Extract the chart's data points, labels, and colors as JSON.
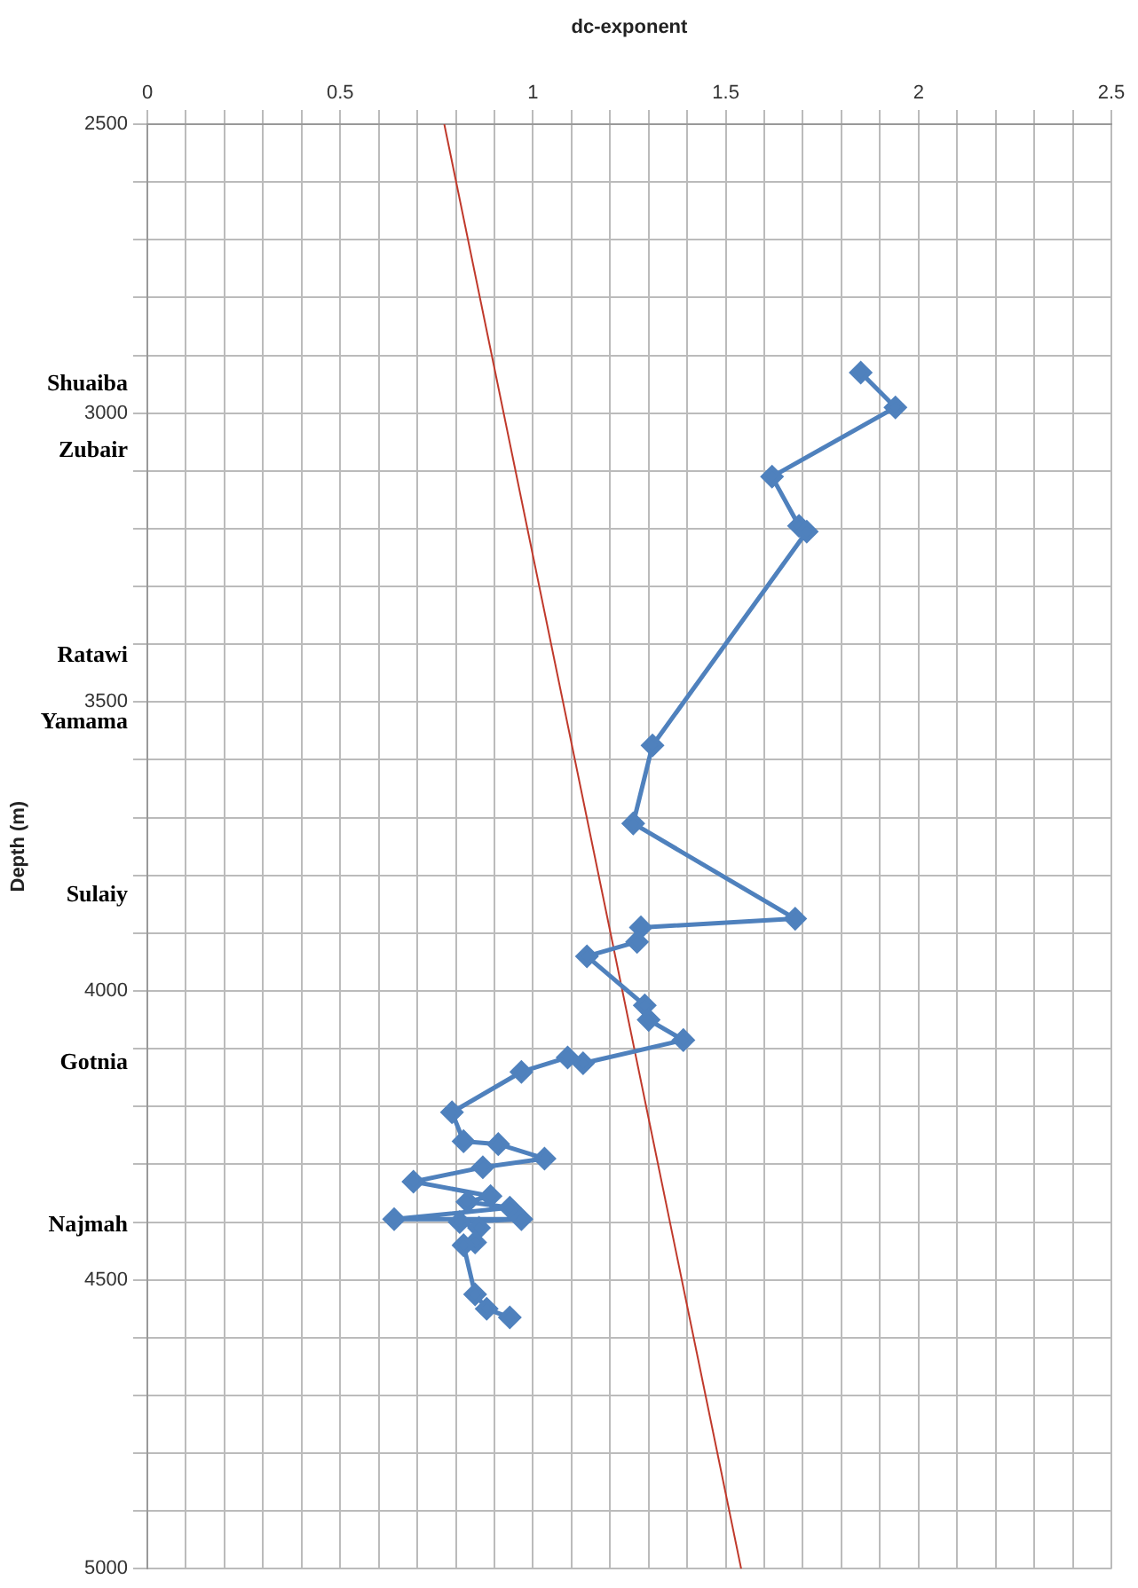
{
  "chart_data": {
    "type": "line",
    "xlabel": "dc-exponent",
    "ylabel": "Depth (m)",
    "xlim": [
      0,
      2.5
    ],
    "xticks": [
      0,
      {
        "value": 0.1,
        "label": null
      },
      {
        "value": 0.2,
        "label": null
      },
      {
        "value": 0.3,
        "label": null
      },
      {
        "value": 0.4,
        "label": null
      },
      0.5,
      {
        "value": 0.6,
        "label": null
      },
      {
        "value": 0.7,
        "label": null
      },
      {
        "value": 0.8,
        "label": null
      },
      {
        "value": 0.9,
        "label": null
      },
      1,
      {
        "value": 1.1,
        "label": null
      },
      {
        "value": 1.2,
        "label": null
      },
      {
        "value": 1.3,
        "label": null
      },
      {
        "value": 1.4,
        "label": null
      },
      1.5,
      {
        "value": 1.6,
        "label": null
      },
      {
        "value": 1.7,
        "label": null
      },
      {
        "value": 1.8,
        "label": null
      },
      {
        "value": 1.9,
        "label": null
      },
      2,
      {
        "value": 2.1,
        "label": null
      },
      {
        "value": 2.2,
        "label": null
      },
      {
        "value": 2.3,
        "label": null
      },
      {
        "value": 2.4,
        "label": null
      },
      2.5
    ],
    "ylim": [
      5000,
      2500
    ],
    "yticks": [
      {
        "value": 2950,
        "label": "Shuaiba"
      },
      {
        "value": 3065,
        "label": "Zubair"
      },
      {
        "value": 3420,
        "label": "Ratawi"
      },
      {
        "value": 3535,
        "label": "Yamama"
      },
      {
        "value": 3835,
        "label": "Sulaiy"
      },
      {
        "value": 4125,
        "label": "Gotnia"
      },
      {
        "value": 4405,
        "label": "Najmah"
      },
      2500,
      {
        "value": 2600,
        "label": null
      },
      {
        "value": 2700,
        "label": null
      },
      {
        "value": 2800,
        "label": null
      },
      {
        "value": 2900,
        "label": null
      },
      3000,
      {
        "value": 3100,
        "label": null
      },
      {
        "value": 3200,
        "label": null
      },
      {
        "value": 3300,
        "label": null
      },
      {
        "value": 3400,
        "label": null
      },
      3500,
      {
        "value": 3600,
        "label": null
      },
      {
        "value": 3700,
        "label": null
      },
      {
        "value": 3800,
        "label": null
      },
      {
        "value": 3900,
        "label": null
      },
      4000,
      {
        "value": 4100,
        "label": null
      },
      {
        "value": 4200,
        "label": null
      },
      {
        "value": 4300,
        "label": null
      },
      {
        "value": 4400,
        "label": null
      },
      4500,
      {
        "value": 4600,
        "label": null
      },
      {
        "value": 4700,
        "label": null
      },
      {
        "value": 4800,
        "label": null
      },
      {
        "value": 4900,
        "label": null
      },
      5000
    ],
    "grid": true,
    "legend": false,
    "marker": "diamond",
    "line_style": "solid",
    "series": [
      {
        "color": "#4f81bd",
        "x": [
          1.85,
          1.94,
          1.62,
          1.69,
          1.71,
          1.31,
          1.26,
          1.68,
          1.28,
          1.27,
          1.14,
          1.29,
          1.3,
          1.39,
          1.13,
          1.09,
          0.97,
          0.79,
          0.82,
          0.91,
          1.03,
          0.87,
          0.69,
          0.89,
          0.83,
          0.94,
          0.64,
          0.97,
          0.81,
          0.86,
          0.85,
          0.82,
          0.85,
          0.88,
          0.94
        ],
        "values": [
          2930,
          2990,
          3110,
          3195,
          3205,
          3575,
          3710,
          3875,
          3890,
          3915,
          3940,
          4025,
          4050,
          4085,
          4125,
          4115,
          4140,
          4210,
          4260,
          4265,
          4290,
          4305,
          4330,
          4355,
          4365,
          4375,
          4395,
          4395,
          4400,
          4410,
          4435,
          4440,
          4525,
          4550,
          4565
        ]
      },
      {
        "color": "#c0392b",
        "marker": "none",
        "x": [
          0.77,
          1.54
        ],
        "values": [
          2500,
          5000
        ]
      }
    ]
  }
}
